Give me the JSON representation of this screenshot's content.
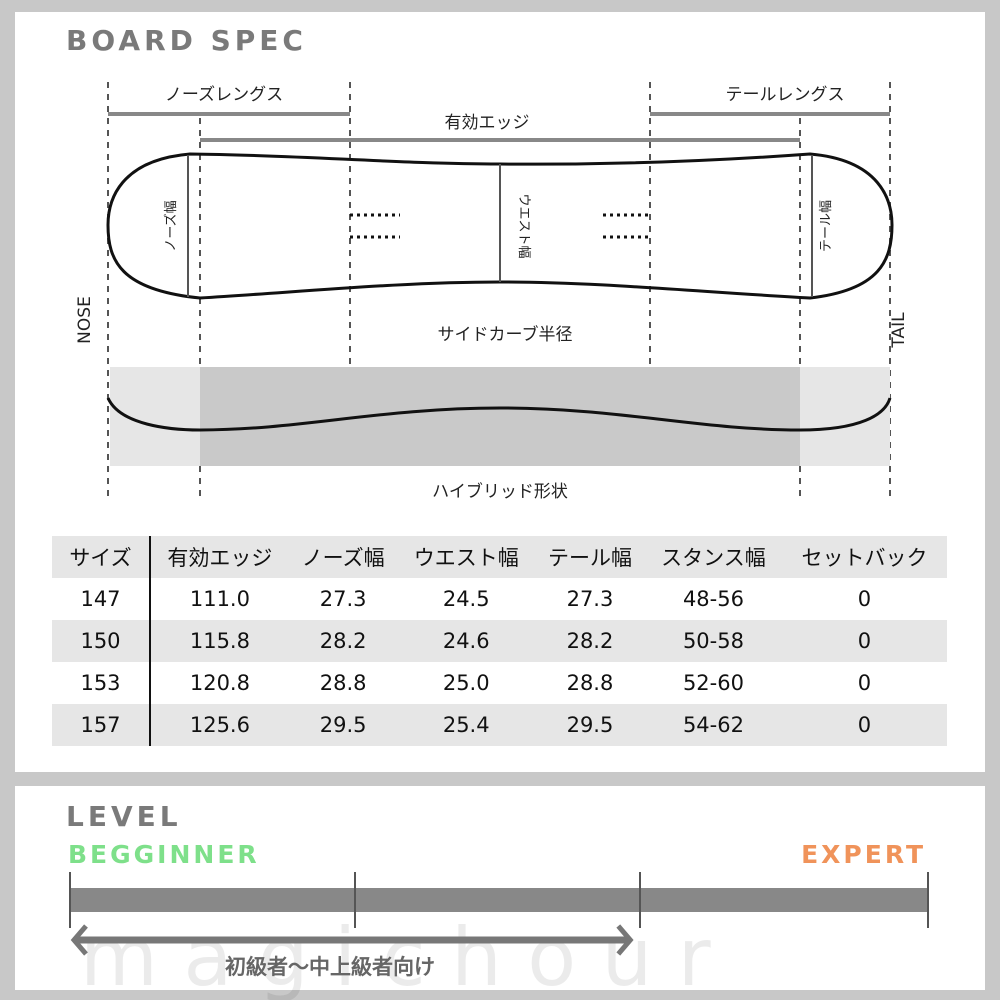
{
  "spec": {
    "title": "BOARD SPEC",
    "labels": {
      "nose_length": "ノーズレングス",
      "tail_length": "テールレングス",
      "effective_edge": "有効エッジ",
      "nose_width": "ノーズ幅",
      "waist_width": "ウエスト幅",
      "tail_width": "テール幅",
      "sidecut": "サイドカーブ半径",
      "nose": "NOSE",
      "tail": "TAIL",
      "profile": "ハイブリッド形状"
    }
  },
  "table": {
    "headers": [
      "サイズ",
      "有効エッジ",
      "ノーズ幅",
      "ウエスト幅",
      "テール幅",
      "スタンス幅",
      "セットバック"
    ],
    "rows": [
      [
        "147",
        "111.0",
        "27.3",
        "24.5",
        "27.3",
        "48-56",
        "0"
      ],
      [
        "150",
        "115.8",
        "28.2",
        "24.6",
        "28.2",
        "50-58",
        "0"
      ],
      [
        "153",
        "120.8",
        "28.8",
        "25.0",
        "28.8",
        "52-60",
        "0"
      ],
      [
        "157",
        "125.6",
        "29.5",
        "25.4",
        "29.5",
        "54-62",
        "0"
      ]
    ]
  },
  "level": {
    "title": "LEVEL",
    "min_label": "BEGGINNER",
    "max_label": "EXPERT",
    "min_color": "#7ee08a",
    "max_color": "#f0935a",
    "range_text": "初級者〜中上級者向け",
    "range_from": 0,
    "range_to": 0.66,
    "watermark": "m a g i c   h o u r"
  }
}
